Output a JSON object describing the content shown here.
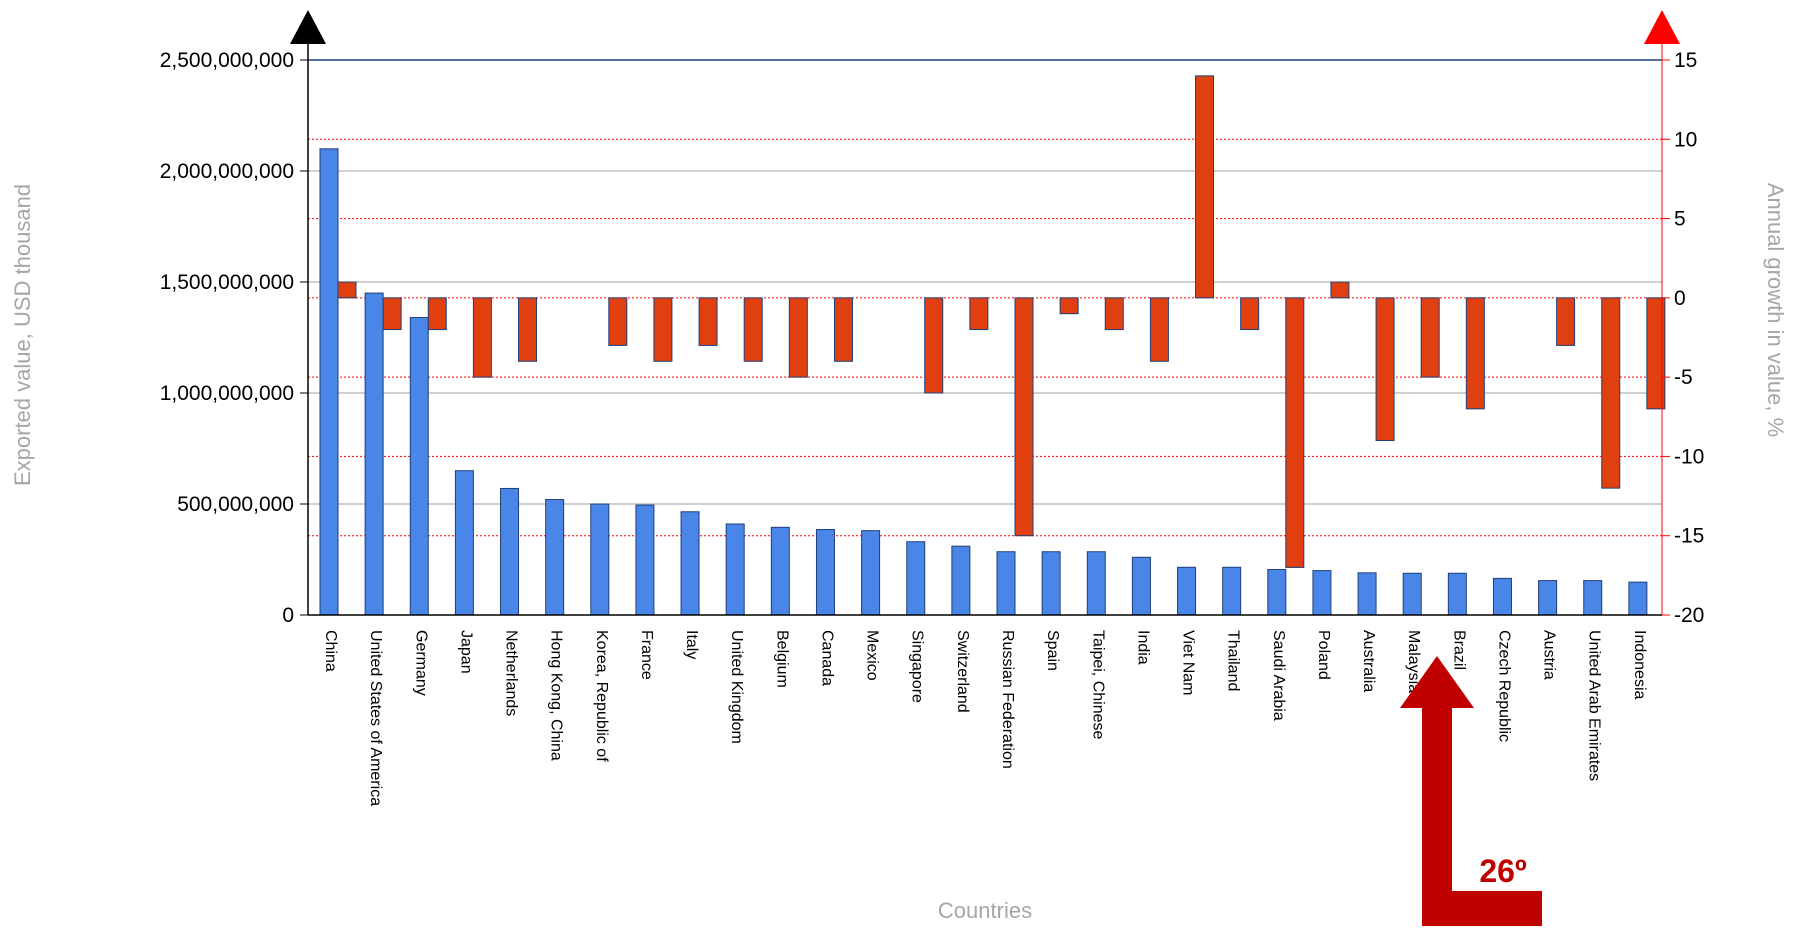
{
  "chart_data": {
    "type": "bar",
    "xlabel": "Countries",
    "ylabel": "Exported value, USD thousand",
    "y2label": "Annual growth in value, %",
    "ylim": [
      0,
      2500000000
    ],
    "y2lim": [
      -20,
      15
    ],
    "yticks": [
      {
        "value": 0,
        "label": "0"
      },
      {
        "value": 500000000,
        "label": "500,000,000"
      },
      {
        "value": 1000000000,
        "label": "1,000,000,000"
      },
      {
        "value": 1500000000,
        "label": "1,500,000,000"
      },
      {
        "value": 2000000000,
        "label": "2,000,000,000"
      },
      {
        "value": 2500000000,
        "label": "2,500,000,000"
      }
    ],
    "y2ticks": [
      {
        "value": -20,
        "label": "-20"
      },
      {
        "value": -15,
        "label": "-15"
      },
      {
        "value": -10,
        "label": "-10"
      },
      {
        "value": -5,
        "label": "-5"
      },
      {
        "value": 0,
        "label": "0"
      },
      {
        "value": 5,
        "label": "5"
      },
      {
        "value": 10,
        "label": "10"
      },
      {
        "value": 15,
        "label": "15"
      }
    ],
    "grid": true,
    "categories": [
      "China",
      "United States of America",
      "Germany",
      "Japan",
      "Netherlands",
      "Hong Kong, China",
      "Korea, Republic of",
      "France",
      "Italy",
      "United Kingdom",
      "Belgium",
      "Canada",
      "Mexico",
      "Singapore",
      "Switzerland",
      "Russian Federation",
      "Spain",
      "Taipei, Chinese",
      "India",
      "Viet Nam",
      "Thailand",
      "Saudi Arabia",
      "Poland",
      "Australia",
      "Malaysia",
      "Brazil",
      "Czech Republic",
      "Austria",
      "United Arab Emirates",
      "Indonesia"
    ],
    "series": [
      {
        "axis": "left",
        "color": "#4a86e8",
        "values": [
          2100000000,
          1450000000,
          1340000000,
          650000000,
          570000000,
          520000000,
          500000000,
          495000000,
          465000000,
          410000000,
          395000000,
          385000000,
          380000000,
          330000000,
          310000000,
          285000000,
          285000000,
          285000000,
          260000000,
          215000000,
          215000000,
          205000000,
          200000000,
          190000000,
          188000000,
          188000000,
          165000000,
          155000000,
          155000000,
          148000000
        ]
      },
      {
        "axis": "right",
        "color": "#e04010",
        "values": [
          1,
          -2,
          -2,
          -5,
          -4,
          0,
          -3,
          -4,
          -3,
          -4,
          -5,
          -4,
          0,
          -6,
          -2,
          -15,
          -1,
          -2,
          -4,
          14,
          -2,
          -17,
          1,
          -9,
          -5,
          -7,
          0,
          -3,
          -12,
          -7
        ]
      }
    ],
    "annotation": {
      "text": "26º",
      "category": "Brazil"
    },
    "colors": {
      "left_axis_marker": "#000000",
      "right_axis_marker": "#ff0000",
      "right_grid": "#ff0000",
      "left_grid": "#a0a0a0",
      "top_line": "#1f3f7a",
      "arrow": "#c00000"
    }
  }
}
